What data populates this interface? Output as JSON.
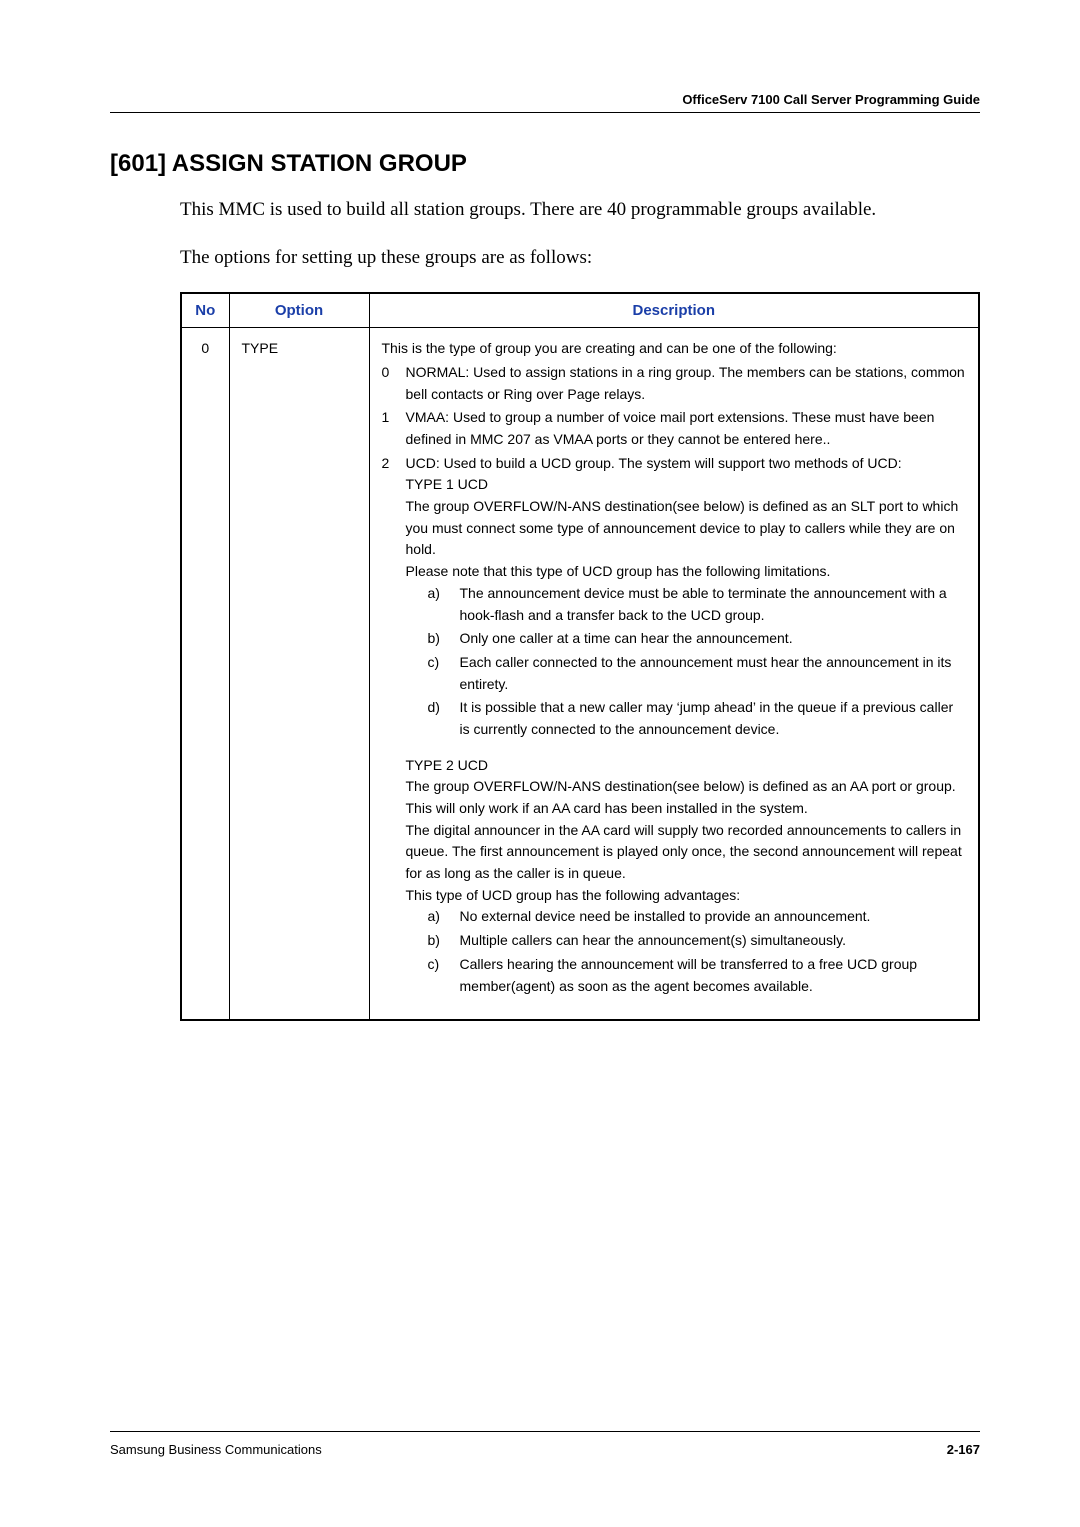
{
  "running_head": "OfficeServ 7100 Call Server Programming Guide",
  "heading": "[601] ASSIGN STATION GROUP",
  "intro_para": "This MMC is used to build all station groups. There are 40 programmable groups available.",
  "options_para": "The options for setting up these groups are as follows:",
  "table": {
    "headers": {
      "no": "No",
      "option": "Option",
      "desc": "Description"
    },
    "row": {
      "no": "0",
      "option": "TYPE",
      "intro": "This is the type of group you are creating and can be one of the following:",
      "numitems": [
        {
          "n": "0",
          "text": "NORMAL: Used to assign stations in a ring group. The members can be stations, common bell contacts or Ring over Page relays."
        },
        {
          "n": "1",
          "text": "VMAA: Used to group a number of voice mail port extensions. These must have been defined in MMC 207 as VMAA ports or they cannot be entered here.."
        },
        {
          "n": "2",
          "text": "UCD: Used to build a UCD group. The system will support two methods of UCD:"
        }
      ],
      "type1": {
        "title": "TYPE 1 UCD",
        "p1": "The group OVERFLOW/N-ANS destination(see below) is defined as an SLT port to which you must connect some type of announcement device to play to callers while they are on hold.",
        "p2": "Please note that this type of UCD group has the following limitations.",
        "alist": [
          {
            "a": "a)",
            "t": "The announcement device must be able to terminate the announcement with a hook-flash and a transfer back to the UCD group."
          },
          {
            "a": "b)",
            "t": "Only one caller at a time can hear the announcement."
          },
          {
            "a": "c)",
            "t": "Each caller connected to the announcement must hear the announcement in its entirety."
          },
          {
            "a": "d)",
            "t": "It is possible that a new caller may ‘jump ahead’ in the queue if a previous caller is currently connected to the announcement device."
          }
        ]
      },
      "type2": {
        "title": "TYPE 2 UCD",
        "p1": "The group OVERFLOW/N-ANS destination(see below) is defined as an AA port or group. This will only work if an AA card has been installed in the system.",
        "p2": "The digital announcer in the AA card will supply two recorded announcements to callers in queue. The first announcement is played only once, the second announcement will repeat for as long as the caller is in queue.",
        "p3": "This type of UCD group has the following advantages:",
        "alist": [
          {
            "a": "a)",
            "t": "No external device need be installed to provide an announcement."
          },
          {
            "a": "b)",
            "t": "Multiple callers can hear the announcement(s) simultaneously."
          },
          {
            "a": "c)",
            "t": "Callers hearing the announcement will be transferred to a free UCD group member(agent) as soon as the agent becomes available."
          }
        ]
      }
    }
  },
  "footer": {
    "left": "Samsung Business Communications",
    "right": "2-167"
  },
  "colors": {
    "header_text": "#1a3ea8",
    "border": "#000000",
    "body_text": "#000000",
    "background": "#ffffff"
  },
  "fonts": {
    "heading_family": "Arial",
    "body_serif_family": "Times New Roman",
    "table_family": "Arial",
    "heading_size_pt": 18,
    "body_size_pt": 14,
    "table_size_pt": 10.5,
    "header_size_pt": 11
  }
}
